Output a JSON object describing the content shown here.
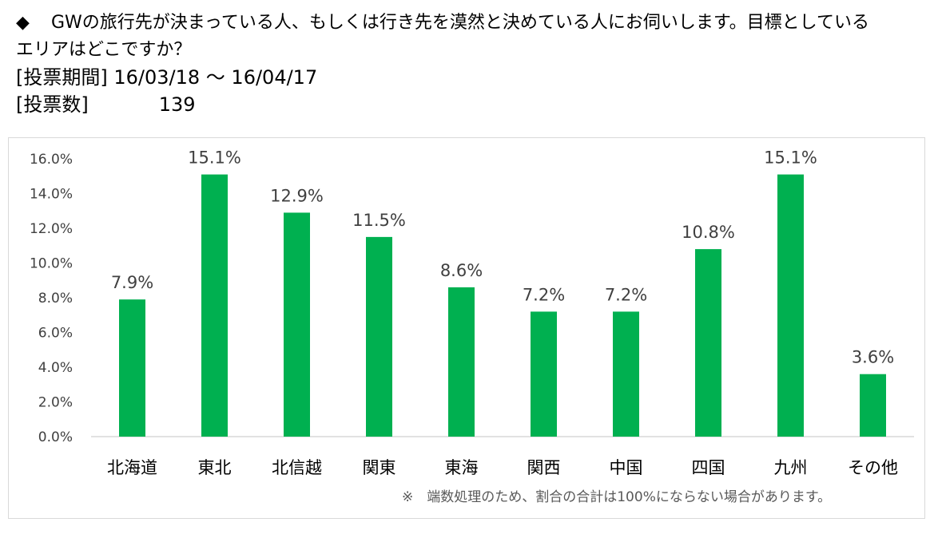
{
  "question": {
    "bullet": "◆",
    "line1": "GWの旅行先が決まっている人、もしくは行き先を漠然と決めている人にお伺いします。目標としている",
    "line2": "エリアはどこですか？"
  },
  "period": {
    "label": "[投票期間]",
    "value": "16/03/18 ～ 16/04/17"
  },
  "votes": {
    "label": "[投票数]",
    "value": "139"
  },
  "note": "※　端数処理のため、割合の合計は100%にならない場合があります。",
  "colors": {
    "bar": "#00b050",
    "axis": "#d9d9d9",
    "text": "#404040"
  },
  "chart_data": {
    "type": "bar",
    "categories": [
      "北海道",
      "東北",
      "北信越",
      "関東",
      "東海",
      "関西",
      "中国",
      "四国",
      "九州",
      "その他"
    ],
    "values": [
      7.9,
      15.1,
      12.9,
      11.5,
      8.6,
      7.2,
      7.2,
      10.8,
      15.1,
      3.6
    ],
    "value_labels": [
      "7.9%",
      "15.1%",
      "12.9%",
      "11.5%",
      "8.6%",
      "7.2%",
      "7.2%",
      "10.8%",
      "15.1%",
      "3.6%"
    ],
    "yticks": [
      0,
      2,
      4,
      6,
      8,
      10,
      12,
      14,
      16
    ],
    "ytick_labels": [
      "0.0%",
      "2.0%",
      "4.0%",
      "6.0%",
      "8.0%",
      "10.0%",
      "12.0%",
      "14.0%",
      "16.0%"
    ],
    "ylim": [
      0,
      16
    ],
    "grid": false,
    "legend": "none"
  }
}
